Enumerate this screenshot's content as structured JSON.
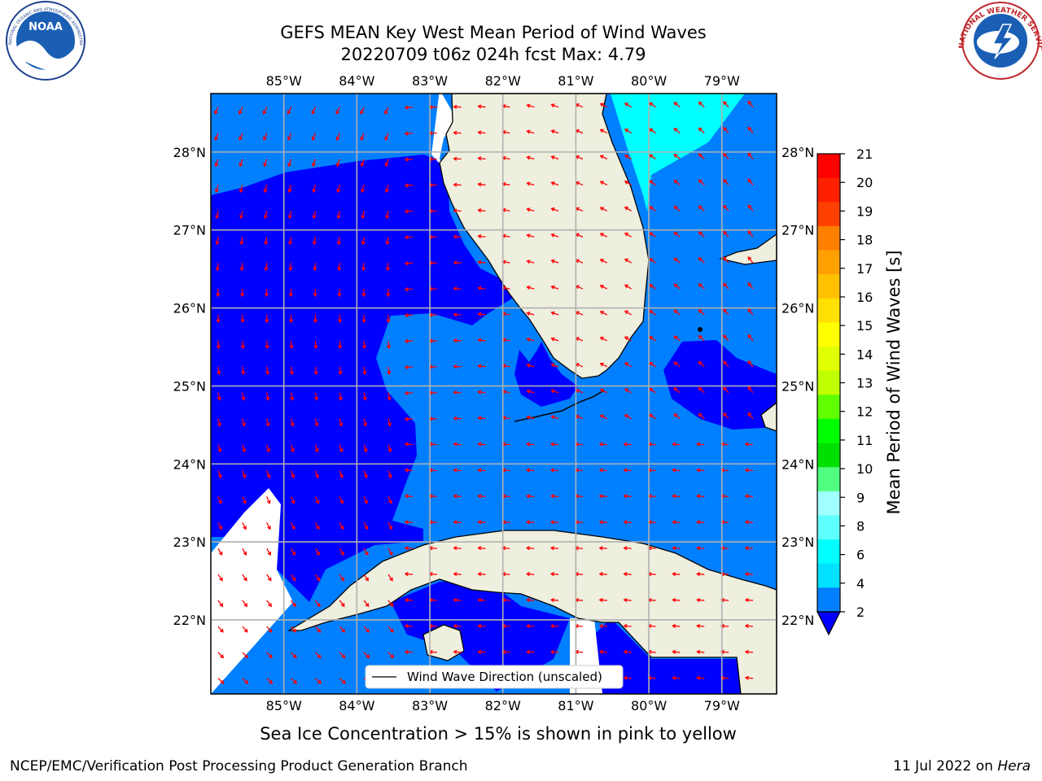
{
  "title": {
    "line1": "GEFS MEAN Key West Mean Period of Wind Waves",
    "line2": "20220709 t06z 024h fcst   Max: 4.79"
  },
  "map": {
    "lon_range": [
      -86.0,
      -78.25
    ],
    "lat_range": [
      21.05,
      28.75
    ],
    "lon_ticks": [
      "85°W",
      "84°W",
      "83°W",
      "82°W",
      "81°W",
      "80°W",
      "79°W"
    ],
    "lat_ticks": [
      "28°N",
      "27°N",
      "26°N",
      "25°N",
      "24°N",
      "23°N",
      "22°N"
    ],
    "colors": {
      "land": "#efefdf",
      "band_2_4": "#0080ff",
      "below_2": "#0000ff",
      "band_4_6": "#00ffff",
      "arrow": "#ff0000",
      "grid": "#b0b0b0"
    },
    "legend": "Wind Wave Direction (unscaled)"
  },
  "colorbar": {
    "label": "Mean Period of Wind Waves [s]",
    "ticks": [
      "21",
      "20",
      "19",
      "18",
      "17",
      "16",
      "15",
      "14",
      "13",
      "12",
      "11",
      "10",
      "9",
      "8",
      "6",
      "4",
      "2"
    ],
    "colors": [
      "#ff0000",
      "#ff2000",
      "#ff4000",
      "#ff8000",
      "#ffa000",
      "#ffc000",
      "#ffe000",
      "#ffff00",
      "#e0ff00",
      "#c0ff00",
      "#60ff00",
      "#00ff00",
      "#00e000",
      "#50ff80",
      "#a0ffff",
      "#60ffff",
      "#00ffff",
      "#00e0ff",
      "#0080ff"
    ],
    "extend_color": "#0000ff"
  },
  "ice_note": "Sea Ice Concentration > 15% is shown in pink to yellow",
  "footer": {
    "left": "NCEP/EMC/Verification Post Processing Product Generation Branch",
    "right_prefix": "11 Jul 2022 on",
    "right_host": "Hera"
  },
  "logos": {
    "noaa": "NOAA",
    "noaa_ring": "NATIONAL OCEANIC AND ATMOSPHERIC ADMINISTRATION · U.S. DEPARTMENT OF COMMERCE",
    "nws_ring": "NATIONAL WEATHER SERVICE"
  }
}
